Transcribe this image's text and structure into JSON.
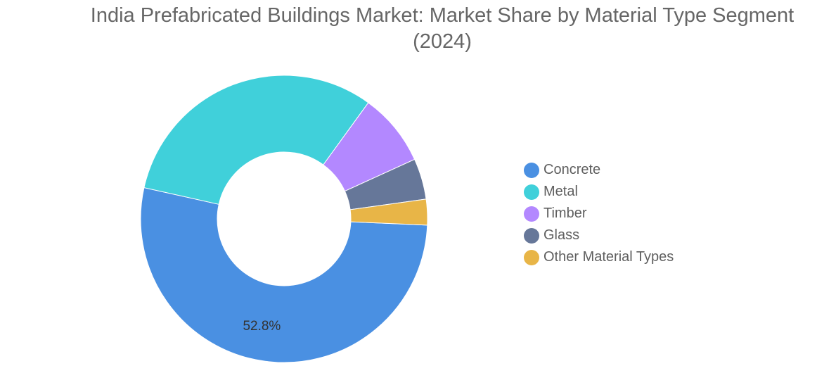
{
  "chart_data": {
    "type": "pie",
    "variant": "donut",
    "title_lines": [
      "India Prefabricated Buildings Market: Market Share by Material Type Segment",
      "(2024)"
    ],
    "categories": [
      "Concrete",
      "Metal",
      "Timber",
      "Glass",
      "Other Material Types"
    ],
    "values": [
      52.8,
      31.5,
      8.2,
      4.6,
      2.9
    ],
    "colors": [
      "#4a90e2",
      "#40d0da",
      "#b388ff",
      "#667799",
      "#e8b547"
    ],
    "data_labels": [
      "52.8%",
      "",
      "",
      "",
      ""
    ],
    "legend_position": "right"
  }
}
